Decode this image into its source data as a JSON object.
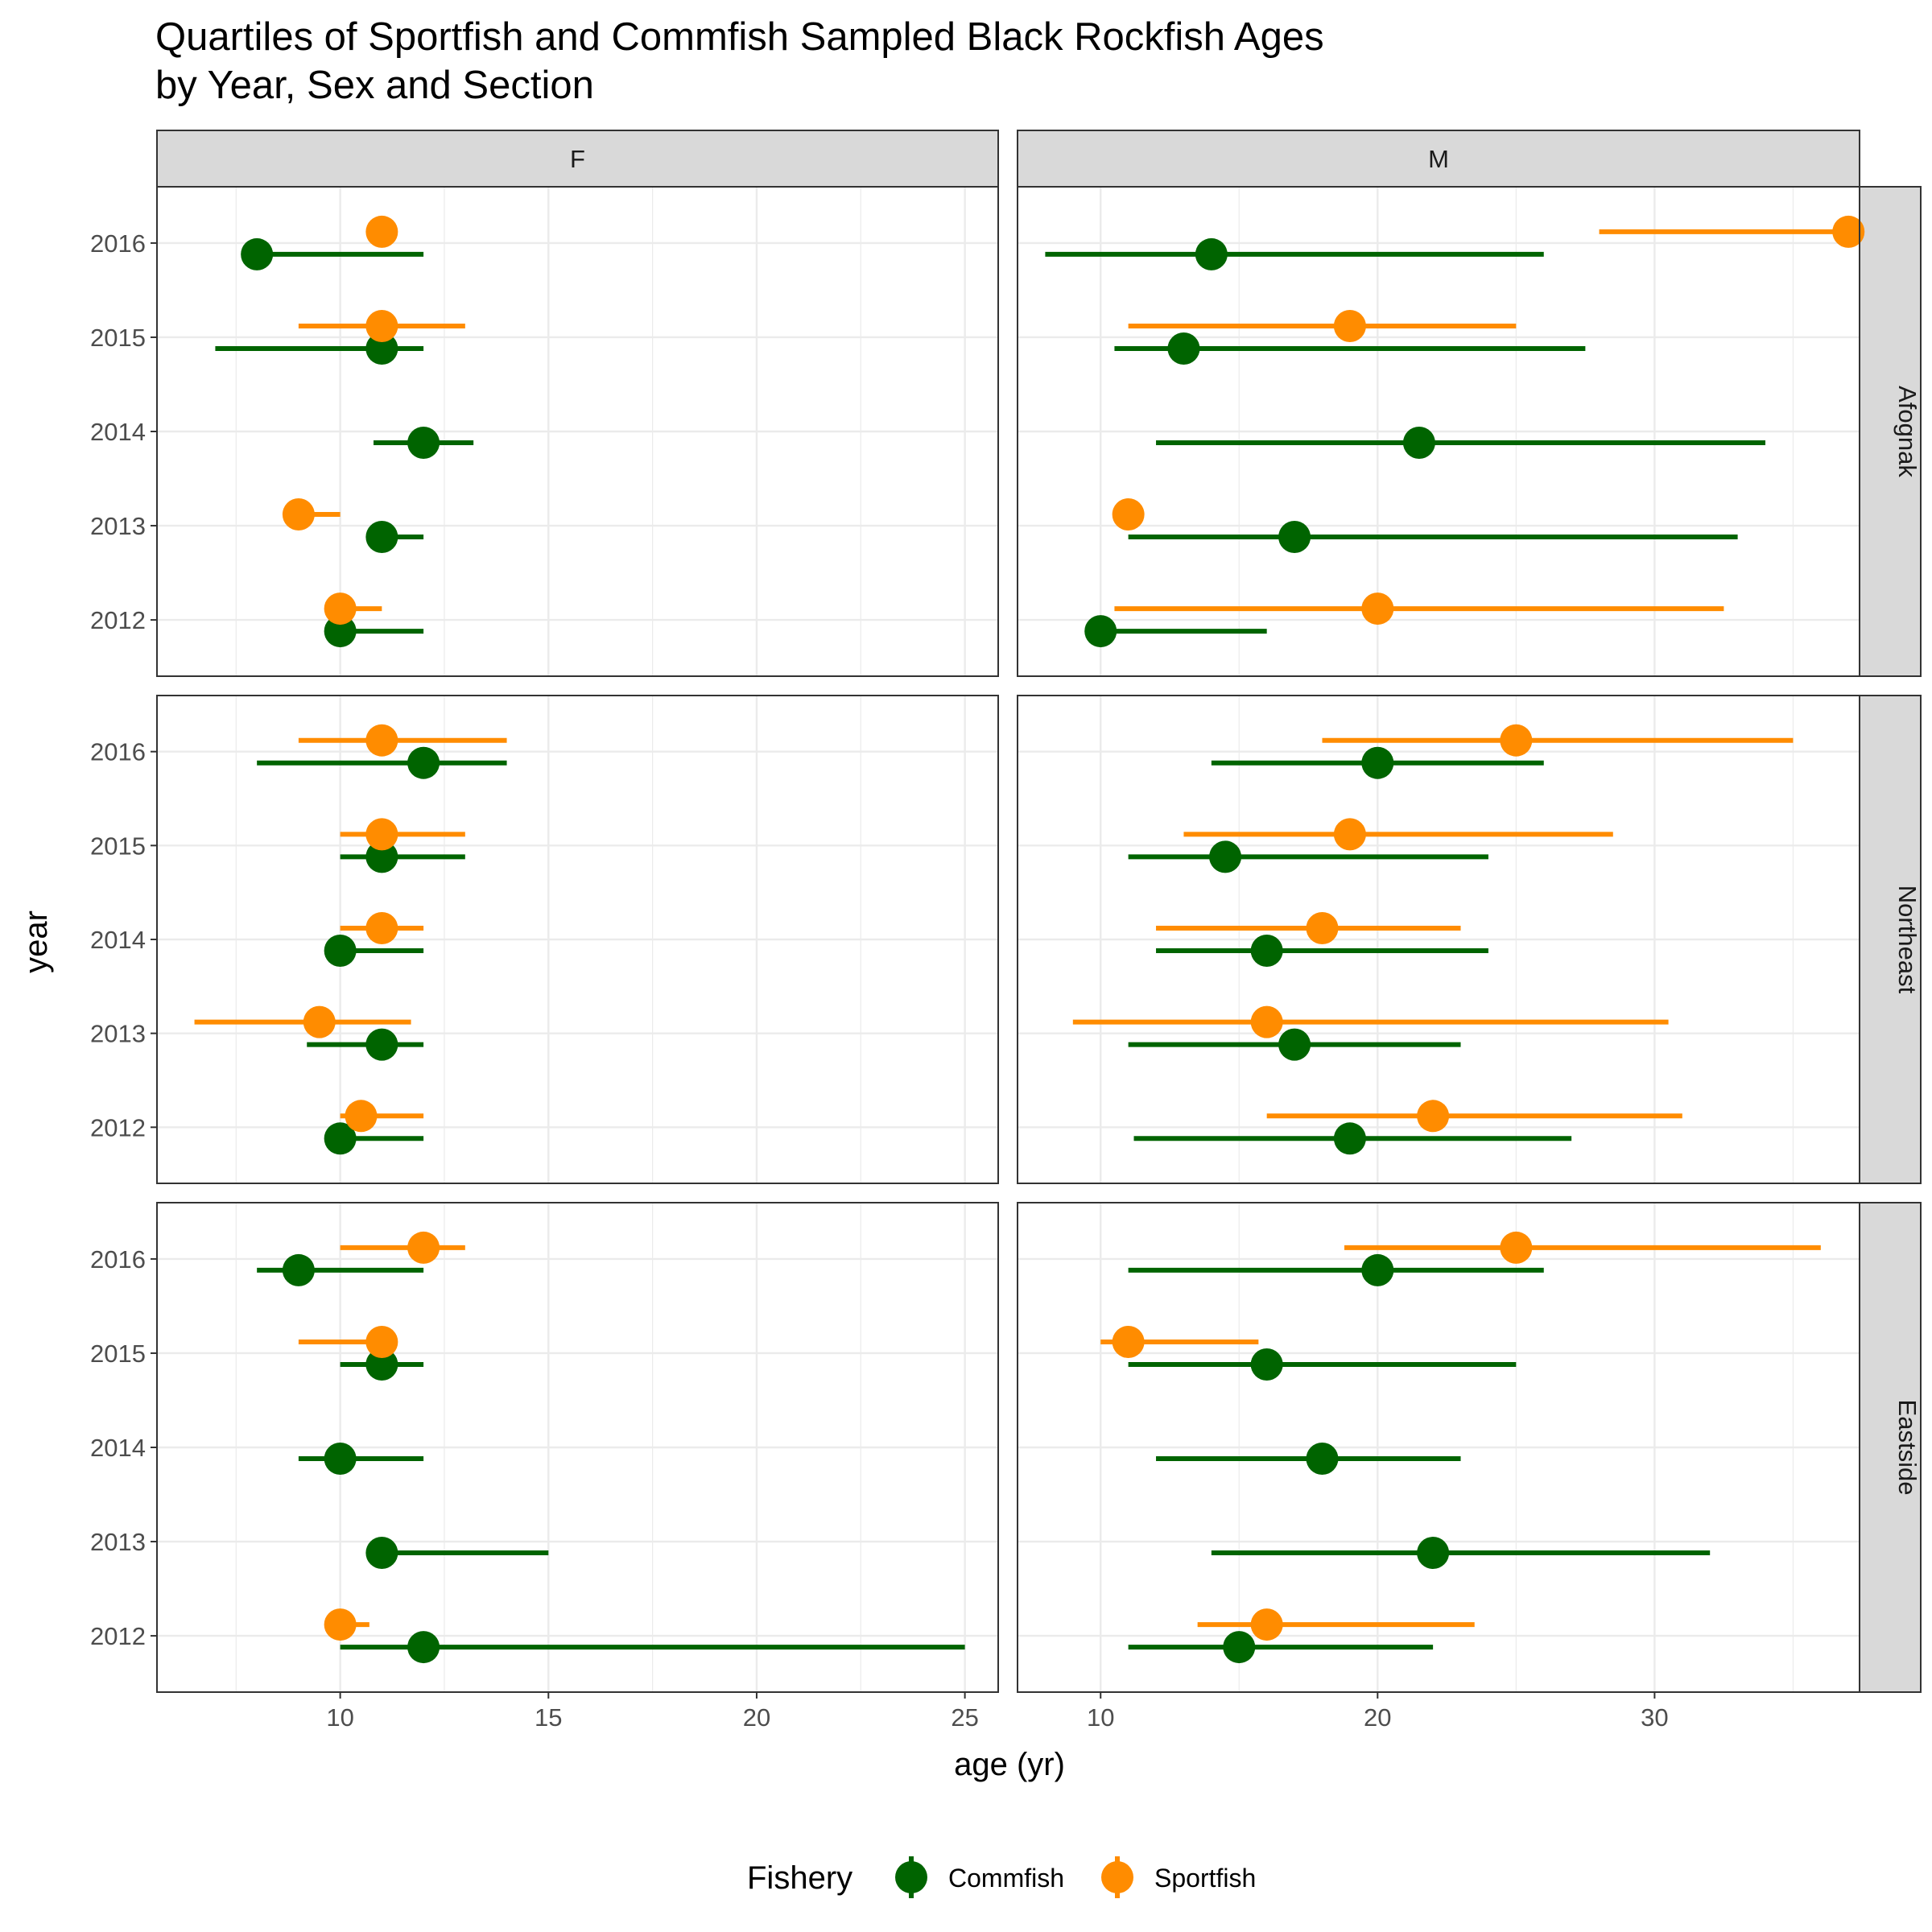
{
  "chart_data": {
    "type": "dot-range",
    "title": [
      "Quartiles of Sportfish and Commfish Sampled Black Rockfish Ages",
      "by Year, Sex and Section"
    ],
    "xlabel": "age (yr)",
    "ylabel": "year",
    "columns": [
      "F",
      "M"
    ],
    "rows": [
      "Afognak",
      "Northeast",
      "Eastside"
    ],
    "years": [
      "2012",
      "2013",
      "2014",
      "2015",
      "2016"
    ],
    "xlim": {
      "F": [
        5.6,
        25.8
      ],
      "M": [
        7.0,
        37.4
      ]
    },
    "x_ticks": {
      "F": [
        10,
        15,
        20,
        25
      ],
      "M": [
        10,
        20,
        30
      ]
    },
    "legend": {
      "title": "Fishery",
      "position": "bottom",
      "entries": [
        {
          "name": "Commfish",
          "color": "#006400"
        },
        {
          "name": "Sportfish",
          "color": "#ff8c00"
        }
      ]
    },
    "grid": true,
    "series": [
      {
        "name": "Commfish",
        "color": "#006400",
        "points": [
          {
            "row": "Afognak",
            "col": "F",
            "year": "2016",
            "low": 8,
            "median": 8,
            "high": 12
          },
          {
            "row": "Afognak",
            "col": "F",
            "year": "2015",
            "low": 7,
            "median": 11,
            "high": 12
          },
          {
            "row": "Afognak",
            "col": "F",
            "year": "2014",
            "low": 10.8,
            "median": 12,
            "high": 13.2
          },
          {
            "row": "Afognak",
            "col": "F",
            "year": "2013",
            "low": 11,
            "median": 11,
            "high": 12
          },
          {
            "row": "Afognak",
            "col": "F",
            "year": "2012",
            "low": 10,
            "median": 10,
            "high": 12
          },
          {
            "row": "Afognak",
            "col": "M",
            "year": "2016",
            "low": 8,
            "median": 14,
            "high": 26
          },
          {
            "row": "Afognak",
            "col": "M",
            "year": "2015",
            "low": 10.5,
            "median": 13,
            "high": 27.5
          },
          {
            "row": "Afognak",
            "col": "M",
            "year": "2014",
            "low": 12,
            "median": 21.5,
            "high": 34
          },
          {
            "row": "Afognak",
            "col": "M",
            "year": "2013",
            "low": 11,
            "median": 17,
            "high": 33
          },
          {
            "row": "Afognak",
            "col": "M",
            "year": "2012",
            "low": 10,
            "median": 10,
            "high": 16
          },
          {
            "row": "Northeast",
            "col": "F",
            "year": "2016",
            "low": 8,
            "median": 12,
            "high": 14
          },
          {
            "row": "Northeast",
            "col": "F",
            "year": "2015",
            "low": 10,
            "median": 11,
            "high": 13
          },
          {
            "row": "Northeast",
            "col": "F",
            "year": "2014",
            "low": 10,
            "median": 10,
            "high": 12
          },
          {
            "row": "Northeast",
            "col": "F",
            "year": "2013",
            "low": 9.2,
            "median": 11,
            "high": 12
          },
          {
            "row": "Northeast",
            "col": "F",
            "year": "2012",
            "low": 10,
            "median": 10,
            "high": 12
          },
          {
            "row": "Northeast",
            "col": "M",
            "year": "2016",
            "low": 14,
            "median": 20,
            "high": 26
          },
          {
            "row": "Northeast",
            "col": "M",
            "year": "2015",
            "low": 11,
            "median": 14.5,
            "high": 24
          },
          {
            "row": "Northeast",
            "col": "M",
            "year": "2014",
            "low": 12,
            "median": 16,
            "high": 24
          },
          {
            "row": "Northeast",
            "col": "M",
            "year": "2013",
            "low": 11,
            "median": 17,
            "high": 23
          },
          {
            "row": "Northeast",
            "col": "M",
            "year": "2012",
            "low": 11.2,
            "median": 19,
            "high": 27
          },
          {
            "row": "Eastside",
            "col": "F",
            "year": "2016",
            "low": 8,
            "median": 9,
            "high": 12
          },
          {
            "row": "Eastside",
            "col": "F",
            "year": "2015",
            "low": 10,
            "median": 11,
            "high": 12
          },
          {
            "row": "Eastside",
            "col": "F",
            "year": "2014",
            "low": 9,
            "median": 10,
            "high": 12
          },
          {
            "row": "Eastside",
            "col": "F",
            "year": "2013",
            "low": 11,
            "median": 11,
            "high": 15
          },
          {
            "row": "Eastside",
            "col": "F",
            "year": "2012",
            "low": 10,
            "median": 12,
            "high": 25
          },
          {
            "row": "Eastside",
            "col": "M",
            "year": "2016",
            "low": 11,
            "median": 20,
            "high": 26
          },
          {
            "row": "Eastside",
            "col": "M",
            "year": "2015",
            "low": 11,
            "median": 16,
            "high": 25
          },
          {
            "row": "Eastside",
            "col": "M",
            "year": "2014",
            "low": 12,
            "median": 18,
            "high": 23
          },
          {
            "row": "Eastside",
            "col": "M",
            "year": "2013",
            "low": 14,
            "median": 22,
            "high": 32
          },
          {
            "row": "Eastside",
            "col": "M",
            "year": "2012",
            "low": 11,
            "median": 15,
            "high": 22
          }
        ]
      },
      {
        "name": "Sportfish",
        "color": "#ff8c00",
        "points": [
          {
            "row": "Afognak",
            "col": "F",
            "year": "2016",
            "low": 11,
            "median": 11,
            "high": 11
          },
          {
            "row": "Afognak",
            "col": "F",
            "year": "2015",
            "low": 9,
            "median": 11,
            "high": 13
          },
          {
            "row": "Afognak",
            "col": "F",
            "year": "2013",
            "low": 9,
            "median": 9,
            "high": 10
          },
          {
            "row": "Afognak",
            "col": "F",
            "year": "2012",
            "low": 10,
            "median": 10,
            "high": 11
          },
          {
            "row": "Afognak",
            "col": "M",
            "year": "2016",
            "low": 28,
            "median": 37,
            "high": 37
          },
          {
            "row": "Afognak",
            "col": "M",
            "year": "2015",
            "low": 11,
            "median": 19,
            "high": 25
          },
          {
            "row": "Afognak",
            "col": "M",
            "year": "2013",
            "low": 11,
            "median": 11,
            "high": 11
          },
          {
            "row": "Afognak",
            "col": "M",
            "year": "2012",
            "low": 10.5,
            "median": 20,
            "high": 32.5
          },
          {
            "row": "Northeast",
            "col": "F",
            "year": "2016",
            "low": 9,
            "median": 11,
            "high": 14
          },
          {
            "row": "Northeast",
            "col": "F",
            "year": "2015",
            "low": 10,
            "median": 11,
            "high": 13
          },
          {
            "row": "Northeast",
            "col": "F",
            "year": "2014",
            "low": 10,
            "median": 11,
            "high": 12
          },
          {
            "row": "Northeast",
            "col": "F",
            "year": "2013",
            "low": 6.5,
            "median": 9.5,
            "high": 11.7
          },
          {
            "row": "Northeast",
            "col": "F",
            "year": "2012",
            "low": 10,
            "median": 10.5,
            "high": 12
          },
          {
            "row": "Northeast",
            "col": "M",
            "year": "2016",
            "low": 18,
            "median": 25,
            "high": 35
          },
          {
            "row": "Northeast",
            "col": "M",
            "year": "2015",
            "low": 13,
            "median": 19,
            "high": 28.5
          },
          {
            "row": "Northeast",
            "col": "M",
            "year": "2014",
            "low": 12,
            "median": 18,
            "high": 23
          },
          {
            "row": "Northeast",
            "col": "M",
            "year": "2013",
            "low": 9,
            "median": 16,
            "high": 30.5
          },
          {
            "row": "Northeast",
            "col": "M",
            "year": "2012",
            "low": 16,
            "median": 22,
            "high": 31
          },
          {
            "row": "Eastside",
            "col": "F",
            "year": "2016",
            "low": 10,
            "median": 12,
            "high": 13
          },
          {
            "row": "Eastside",
            "col": "F",
            "year": "2015",
            "low": 9,
            "median": 11,
            "high": 11
          },
          {
            "row": "Eastside",
            "col": "F",
            "year": "2012",
            "low": 10,
            "median": 10,
            "high": 10.7
          },
          {
            "row": "Eastside",
            "col": "M",
            "year": "2016",
            "low": 18.8,
            "median": 25,
            "high": 36
          },
          {
            "row": "Eastside",
            "col": "M",
            "year": "2015",
            "low": 10,
            "median": 11,
            "high": 15.7
          },
          {
            "row": "Eastside",
            "col": "M",
            "year": "2012",
            "low": 13.5,
            "median": 16,
            "high": 23.5
          }
        ]
      }
    ]
  }
}
